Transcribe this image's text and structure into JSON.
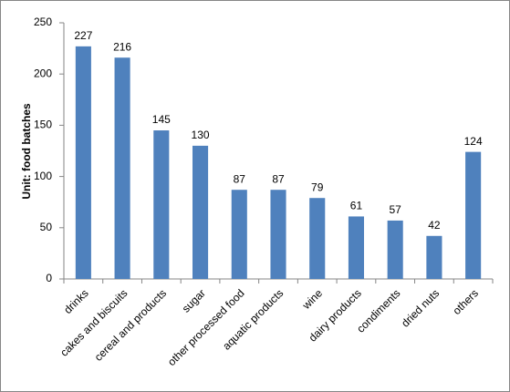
{
  "chart_data": {
    "type": "bar",
    "y_label": "Unit: food batches",
    "categories": [
      "drinks",
      "cakes and biscuits",
      "cereal and products",
      "sugar",
      "other processed food",
      "aquatic products",
      "wine",
      "dairy products",
      "condiments",
      "dried nuts",
      "others"
    ],
    "values": [
      227,
      216,
      145,
      130,
      87,
      87,
      79,
      61,
      57,
      42,
      124
    ],
    "color": "#4f81bd",
    "ylim": [
      0,
      250
    ],
    "yticks": [
      0,
      50,
      100,
      150,
      200,
      250
    ],
    "grid": false
  }
}
